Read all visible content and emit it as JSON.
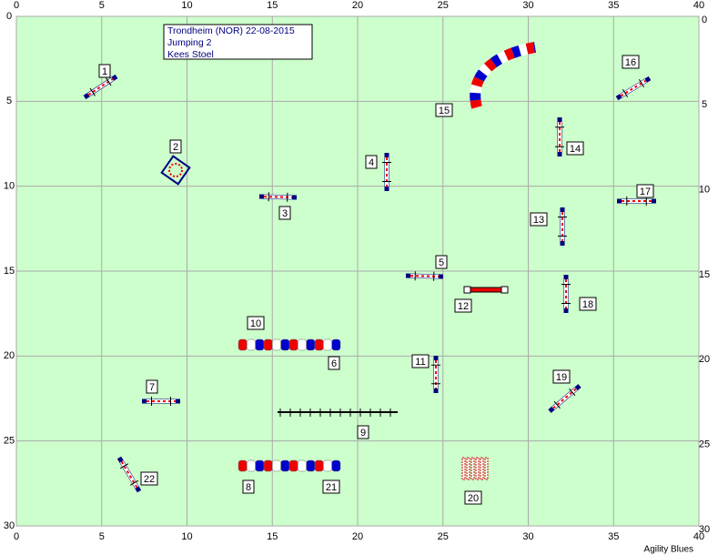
{
  "axes": {
    "xlim": [
      0,
      40
    ],
    "ylim": [
      0,
      30
    ],
    "xticks": [
      0,
      5,
      10,
      15,
      20,
      25,
      30,
      35,
      40
    ],
    "yticks": [
      0,
      5,
      10,
      15,
      20,
      25,
      30
    ]
  },
  "info": [
    "Trondheim (NOR) 22-08-2015",
    "Jumping 2",
    "Kees Stoel"
  ],
  "obstacles": [
    "1",
    "2",
    "3",
    "4",
    "5",
    "6",
    "7",
    "8",
    "9",
    "10",
    "11",
    "12",
    "13",
    "14",
    "15",
    "16",
    "17",
    "18",
    "19",
    "20",
    "21",
    "22"
  ],
  "footer": "Agility Blues"
}
